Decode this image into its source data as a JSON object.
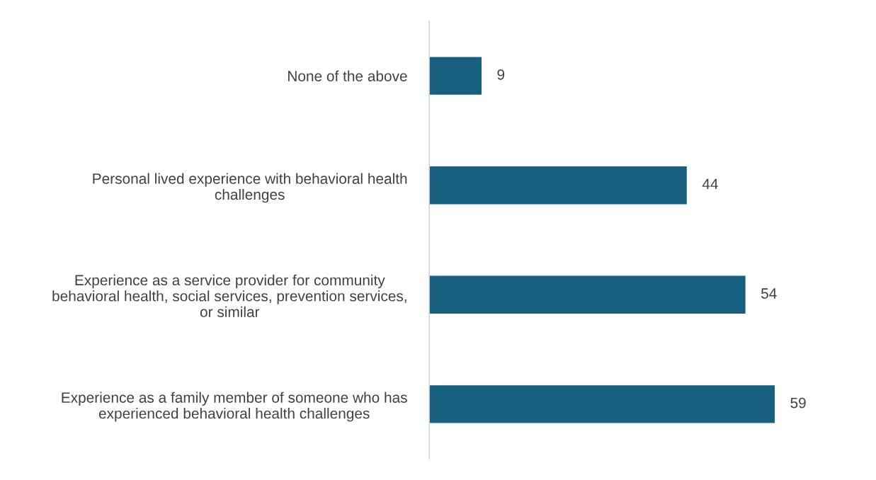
{
  "chart_data": {
    "type": "bar",
    "orientation": "horizontal",
    "categories": [
      "None of the above",
      "Personal lived experience with behavioral health challenges",
      "Experience as a service provider for community behavioral health, social services, prevention services, or similar",
      "Experience as a family member of someone who has experienced behavioral health challenges"
    ],
    "values": [
      9,
      44,
      54,
      59
    ],
    "color": "#17607f",
    "data_labels": true,
    "grid": false,
    "legend": false
  }
}
